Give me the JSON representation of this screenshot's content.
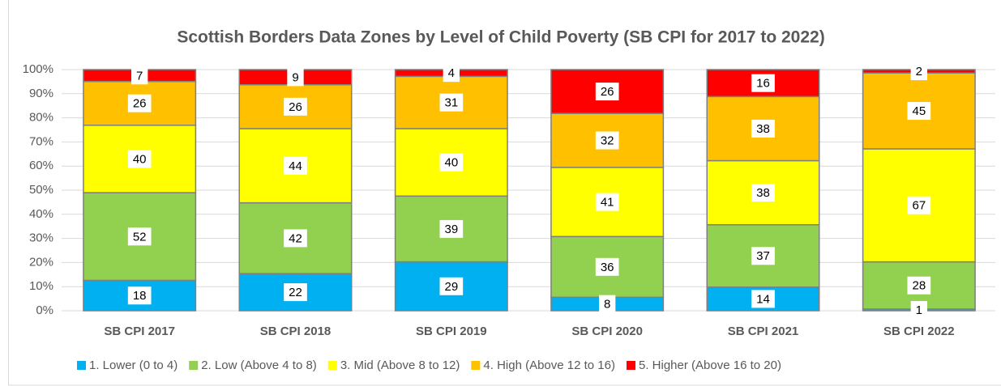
{
  "chart_data": {
    "type": "bar",
    "stacking": "percent",
    "title": "Scottish Borders Data Zones by Level of Child Poverty (SB CPI for 2017 to 2022)",
    "categories": [
      "SB CPI 2017",
      "SB CPI 2018",
      "SB CPI 2019",
      "SB CPI 2020",
      "SB CPI 2021",
      "SB CPI 2022"
    ],
    "series": [
      {
        "name": "1. Lower (0 to 4)",
        "color": "#00b0f0",
        "values": [
          18,
          22,
          29,
          8,
          14,
          1
        ]
      },
      {
        "name": "2. Low (Above 4 to 8)",
        "color": "#92d050",
        "values": [
          52,
          42,
          39,
          36,
          37,
          28
        ]
      },
      {
        "name": "3. Mid (Above 8 to 12)",
        "color": "#ffff00",
        "values": [
          40,
          44,
          40,
          41,
          38,
          67
        ]
      },
      {
        "name": "4. High (Above 12 to 16)",
        "color": "#ffc000",
        "values": [
          26,
          26,
          31,
          32,
          38,
          45
        ]
      },
      {
        "name": "5. Higher (Above 16 to 20)",
        "color": "#ff0000",
        "values": [
          7,
          9,
          4,
          26,
          16,
          2
        ]
      }
    ],
    "ylim": [
      0,
      100
    ],
    "yticks": [
      {
        "value": 0,
        "label": "0%"
      },
      {
        "value": 10,
        "label": "10%"
      },
      {
        "value": 20,
        "label": "20%"
      },
      {
        "value": 30,
        "label": "30%"
      },
      {
        "value": 40,
        "label": "40%"
      },
      {
        "value": 50,
        "label": "50%"
      },
      {
        "value": 60,
        "label": "60%"
      },
      {
        "value": 70,
        "label": "70%"
      },
      {
        "value": 80,
        "label": "80%"
      },
      {
        "value": 90,
        "label": "90%"
      },
      {
        "value": 100,
        "label": "100%"
      }
    ],
    "grid": true,
    "legend": "bottom"
  }
}
